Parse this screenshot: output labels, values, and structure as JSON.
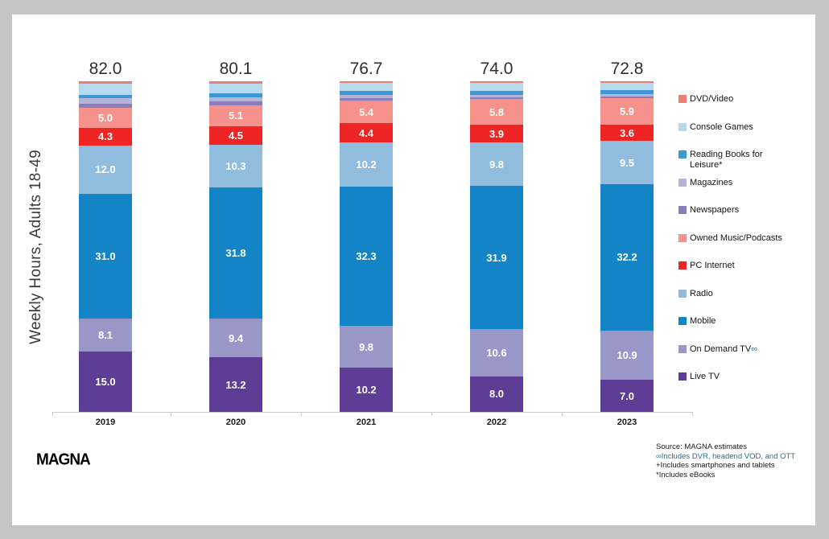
{
  "page": {
    "background": "#c5c5c5",
    "logo": "MAGNA",
    "footnotes": [
      {
        "text": "Source: MAGNA estimates",
        "color": "#1a1a1a"
      },
      {
        "text": "∞Includes DVR, headend VOD, and OTT",
        "color": "#2d6e7e"
      },
      {
        "text": "+Includes smartphones and tablets",
        "color": "#1a1a1a"
      },
      {
        "text": "*Includes eBooks",
        "color": "#1a1a1a"
      }
    ]
  },
  "chart_data": {
    "type": "bar",
    "subtype": "stacked-normalized-height",
    "ylabel": "Weekly Hours, Adults 18-49",
    "legend_position": "right",
    "grid": false,
    "label_min_value": 3.5,
    "categories": [
      "2019",
      "2020",
      "2021",
      "2022",
      "2023"
    ],
    "totals": [
      82.0,
      80.1,
      76.7,
      74.0,
      72.8
    ],
    "series_note": "series listed top-to-bottom of each stacked bar; unlabeled thin segment values estimated from pixel heights",
    "series": [
      {
        "name": "DVD/Video",
        "color": "#ed7d72",
        "values": [
          0.6,
          0.5,
          0.4,
          0.3,
          0.3
        ]
      },
      {
        "name": "Console Games",
        "color": "#b7d9ee",
        "values": [
          2.7,
          2.5,
          1.9,
          1.8,
          1.7
        ]
      },
      {
        "name": "Reading Books for Leisure*",
        "color": "#3e96d2",
        "values": [
          0.9,
          0.9,
          0.9,
          0.9,
          0.9
        ]
      },
      {
        "name": "Magazines",
        "color": "#b5b3d8",
        "values": [
          1.3,
          1.0,
          0.7,
          0.6,
          0.5
        ]
      },
      {
        "name": "Newspapers",
        "color": "#8b7db9",
        "values": [
          1.1,
          0.9,
          0.5,
          0.4,
          0.3
        ]
      },
      {
        "name": "Owned Music/Podcasts",
        "color": "#f7918b",
        "values": [
          5.0,
          5.1,
          5.4,
          5.8,
          5.9
        ]
      },
      {
        "name": "PC Internet",
        "color": "#ee2524",
        "values": [
          4.3,
          4.5,
          4.4,
          3.9,
          3.6
        ]
      },
      {
        "name": "Radio",
        "color": "#90bddd",
        "values": [
          12.0,
          10.3,
          10.2,
          9.8,
          9.5
        ]
      },
      {
        "name": "Mobile",
        "color": "#1385c6",
        "values": [
          31.0,
          31.8,
          32.3,
          31.9,
          32.2
        ]
      },
      {
        "name": "On Demand TV",
        "legend_suffix": "∞",
        "suffix_color": "#2d6e7e",
        "color": "#9897c7",
        "values": [
          8.1,
          9.4,
          9.8,
          10.6,
          10.9
        ]
      },
      {
        "name": "Live TV",
        "color": "#5d3d95",
        "values": [
          15.0,
          13.2,
          10.2,
          8.0,
          7.0
        ]
      }
    ]
  }
}
